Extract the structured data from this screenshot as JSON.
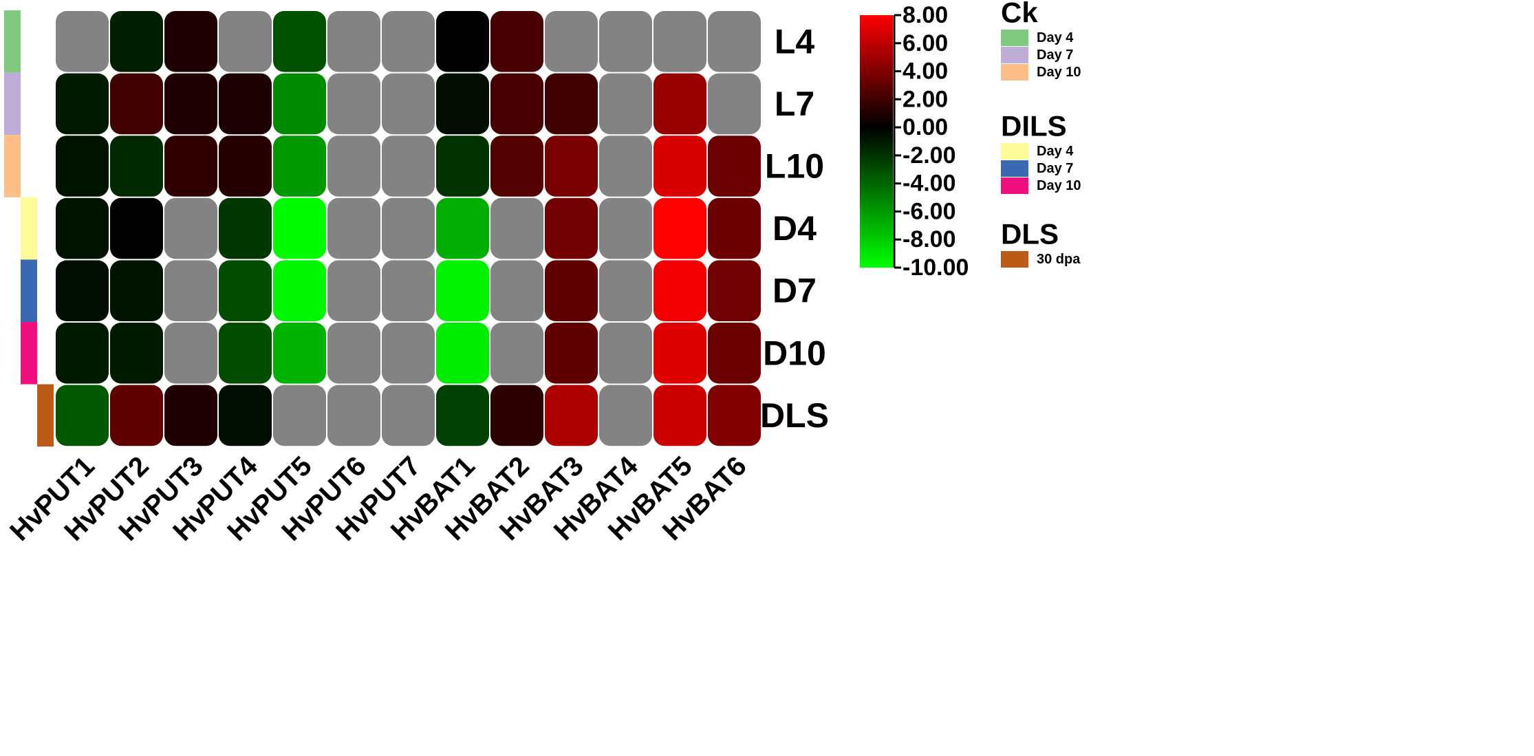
{
  "chart_data": {
    "type": "heatmap",
    "title": "",
    "columns": [
      "HvPUT1",
      "HvPUT2",
      "HvPUT3",
      "HvPUT4",
      "HvPUT5",
      "HvPUT6",
      "HvPUT7",
      "HvBAT1",
      "HvBAT2",
      "HvBAT3",
      "HvBAT4",
      "HvBAT5",
      "HvBAT6"
    ],
    "rows": [
      "L4",
      "L7",
      "L10",
      "D4",
      "D7",
      "D10",
      "DLS"
    ],
    "values": [
      [
        null,
        -1.2,
        1.0,
        null,
        -3.2,
        null,
        null,
        0.0,
        2.2,
        null,
        null,
        null,
        null
      ],
      [
        -1.0,
        2.0,
        1.0,
        0.8,
        -5.5,
        null,
        null,
        -0.5,
        2.2,
        2.0,
        null,
        4.8,
        null
      ],
      [
        -0.8,
        -1.6,
        1.5,
        1.2,
        -6.0,
        null,
        null,
        -2.0,
        2.6,
        3.8,
        null,
        6.8,
        3.4
      ],
      [
        -0.8,
        0.0,
        null,
        -2.2,
        -9.9,
        null,
        null,
        -6.8,
        null,
        3.6,
        null,
        8.0,
        3.4
      ],
      [
        -0.6,
        -0.8,
        null,
        -3.0,
        -9.6,
        null,
        null,
        -9.5,
        null,
        3.0,
        null,
        7.6,
        3.6
      ],
      [
        -1.0,
        -1.0,
        null,
        -3.0,
        -7.0,
        null,
        null,
        -9.3,
        null,
        3.0,
        null,
        7.0,
        3.4
      ],
      [
        -3.4,
        3.0,
        1.0,
        -0.6,
        null,
        null,
        null,
        -2.5,
        1.4,
        5.4,
        null,
        6.4,
        4.0
      ]
    ],
    "missing_color": "#838383",
    "color_scale": {
      "min": -10.0,
      "max": 8.0,
      "min_color": "#00ff00",
      "mid_value": 0.0,
      "mid_color": "#000000",
      "max_color": "#ff0000",
      "ticks": [
        "8.00",
        "6.00",
        "4.00",
        "2.00",
        "0.00",
        "-2.00",
        "-4.00",
        "-6.00",
        "-8.00",
        "-10.00"
      ]
    },
    "annotation_bars": [
      {
        "group": "Ck",
        "rows": [
          0,
          1,
          2
        ],
        "colors": [
          "#7fca7f",
          "#bfadd8",
          "#fdbf86"
        ]
      },
      {
        "group": "DILS",
        "rows": [
          3,
          4,
          5
        ],
        "colors": [
          "#fdfc99",
          "#3a69b2",
          "#ef0f7f"
        ]
      },
      {
        "group": "DLS",
        "rows": [
          6
        ],
        "colors": [
          "#bd5a15"
        ]
      }
    ],
    "legends": [
      {
        "title": "Ck",
        "items": [
          {
            "label": "Day 4",
            "color": "#7fca7f"
          },
          {
            "label": "Day 7",
            "color": "#bfadd8"
          },
          {
            "label": "Day 10",
            "color": "#fdbf86"
          }
        ]
      },
      {
        "title": "DILS",
        "items": [
          {
            "label": "Day 4",
            "color": "#fdfc99"
          },
          {
            "label": "Day 7",
            "color": "#3a69b2"
          },
          {
            "label": "Day 10",
            "color": "#ef0f7f"
          }
        ]
      },
      {
        "title": "DLS",
        "items": [
          {
            "label": "30 dpa",
            "color": "#bd5a15"
          }
        ]
      }
    ]
  }
}
